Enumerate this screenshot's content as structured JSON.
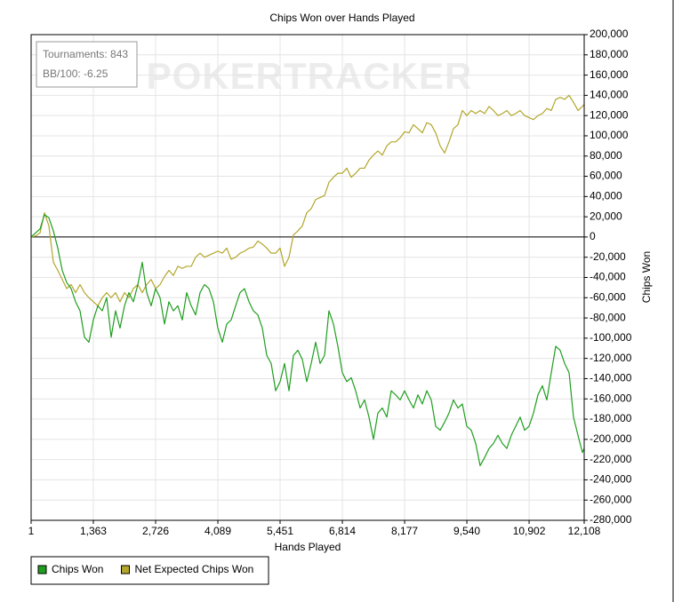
{
  "chart_data": {
    "type": "line",
    "title": "Chips Won over Hands Played",
    "xlabel": "Hands Played",
    "ylabel": "Chips Won",
    "watermark": "POKERTRACKER",
    "annotations": [
      "Tournaments: 843",
      "BB/100: -6.25"
    ],
    "grid": true,
    "zero_line": true,
    "y_axis_side": "right",
    "legend_position": "below-left",
    "x": [
      1,
      98,
      196,
      293,
      390,
      488,
      585,
      682,
      780,
      877,
      974,
      1072,
      1169,
      1266,
      1363,
      1461,
      1558,
      1655,
      1753,
      1850,
      1947,
      2045,
      2142,
      2239,
      2337,
      2434,
      2531,
      2629,
      2726,
      2823,
      2921,
      3018,
      3115,
      3213,
      3310,
      3407,
      3505,
      3602,
      3699,
      3796,
      3894,
      3991,
      4088,
      4186,
      4283,
      4380,
      4478,
      4575,
      4672,
      4770,
      4867,
      4964,
      5062,
      5159,
      5256,
      5354,
      5451,
      5548,
      5646,
      5743,
      5840,
      5938,
      6035,
      6132,
      6230,
      6327,
      6424,
      6521,
      6619,
      6716,
      6813,
      6911,
      7008,
      7105,
      7203,
      7300,
      7397,
      7495,
      7592,
      7689,
      7787,
      7884,
      7981,
      8079,
      8176,
      8273,
      8371,
      8468,
      8565,
      8663,
      8760,
      8857,
      8955,
      9052,
      9149,
      9246,
      9344,
      9441,
      9538,
      9636,
      9733,
      9830,
      9928,
      10025,
      10122,
      10220,
      10317,
      10414,
      10512,
      10609,
      10706,
      10804,
      10901,
      10998,
      11096,
      11193,
      11290,
      11388,
      11485,
      11582,
      11680,
      11777,
      11874,
      11972,
      12069,
      12108
    ],
    "series": [
      {
        "name": "Chips Won",
        "color": "#1f9e1f",
        "values": [
          0,
          4000,
          8000,
          22000,
          19000,
          6000,
          -11000,
          -33000,
          -45000,
          -51000,
          -64000,
          -73000,
          -99000,
          -104000,
          -82000,
          -68000,
          -73000,
          -60000,
          -99000,
          -73000,
          -90000,
          -68000,
          -55000,
          -64000,
          -47000,
          -25000,
          -55000,
          -68000,
          -51000,
          -60000,
          -86000,
          -64000,
          -73000,
          -68000,
          -82000,
          -55000,
          -68000,
          -77000,
          -55000,
          -47000,
          -51000,
          -64000,
          -90000,
          -104000,
          -86000,
          -82000,
          -68000,
          -55000,
          -51000,
          -64000,
          -73000,
          -77000,
          -90000,
          -117000,
          -125000,
          -152000,
          -143000,
          -125000,
          -152000,
          -117000,
          -112000,
          -121000,
          -143000,
          -125000,
          -104000,
          -125000,
          -117000,
          -73000,
          -86000,
          -108000,
          -134000,
          -143000,
          -139000,
          -152000,
          -169000,
          -161000,
          -178000,
          -200000,
          -174000,
          -169000,
          -178000,
          -152000,
          -156000,
          -161000,
          -152000,
          -161000,
          -169000,
          -156000,
          -165000,
          -152000,
          -161000,
          -187000,
          -191000,
          -183000,
          -174000,
          -161000,
          -169000,
          -165000,
          -187000,
          -191000,
          -204000,
          -226000,
          -218000,
          -209000,
          -204000,
          -196000,
          -204000,
          -209000,
          -196000,
          -187000,
          -178000,
          -191000,
          -187000,
          -174000,
          -156000,
          -147000,
          -161000,
          -134000,
          -108000,
          -112000,
          -125000,
          -134000,
          -178000,
          -196000,
          -213000,
          -209000
        ]
      },
      {
        "name": "Net Expected Chips Won",
        "color": "#b3a62b",
        "values": [
          0,
          1000,
          4000,
          24000,
          11000,
          -25000,
          -33000,
          -42000,
          -51000,
          -47000,
          -55000,
          -47000,
          -55000,
          -60000,
          -64000,
          -68000,
          -60000,
          -55000,
          -60000,
          -55000,
          -64000,
          -55000,
          -60000,
          -51000,
          -47000,
          -55000,
          -47000,
          -42000,
          -51000,
          -47000,
          -39000,
          -33000,
          -38000,
          -29000,
          -31000,
          -29000,
          -29000,
          -20000,
          -16000,
          -20000,
          -18000,
          -16000,
          -14000,
          -16000,
          -11000,
          -22000,
          -20000,
          -16000,
          -14000,
          -11000,
          -10000,
          -4000,
          -7000,
          -11000,
          -16000,
          -16000,
          -11000,
          -29000,
          -20000,
          2000,
          6000,
          11000,
          24000,
          28000,
          37000,
          39000,
          41000,
          54000,
          59000,
          63000,
          63000,
          68000,
          59000,
          63000,
          68000,
          68000,
          76000,
          81000,
          85000,
          81000,
          90000,
          94000,
          94000,
          98000,
          104000,
          103000,
          111000,
          107000,
          103000,
          113000,
          111000,
          103000,
          90000,
          83000,
          94000,
          107000,
          111000,
          125000,
          120000,
          125000,
          122000,
          125000,
          122000,
          129000,
          125000,
          120000,
          122000,
          125000,
          120000,
          122000,
          125000,
          120000,
          118000,
          116000,
          120000,
          122000,
          127000,
          125000,
          136000,
          138000,
          136000,
          140000,
          133000,
          125000,
          129000,
          131000
        ]
      }
    ],
    "xlim": [
      1,
      12108
    ],
    "xticks": [
      1,
      {
        "value": 1363,
        "label": "1,363"
      },
      {
        "value": 2726,
        "label": "2,726"
      },
      {
        "value": 4089,
        "label": "4,089"
      },
      {
        "value": 5451,
        "label": "5,451"
      },
      {
        "value": 6814,
        "label": "6,814"
      },
      {
        "value": 8177,
        "label": "8,177"
      },
      {
        "value": 9540,
        "label": "9,540"
      },
      {
        "value": 10902,
        "label": "10,902"
      },
      {
        "value": 12108,
        "label": "12,108"
      }
    ],
    "ylim": [
      -280000,
      200000
    ],
    "yticks": [
      {
        "value": 200000,
        "label": "200,000"
      },
      {
        "value": 180000,
        "label": "180,000"
      },
      {
        "value": 160000,
        "label": "160,000"
      },
      {
        "value": 140000,
        "label": "140,000"
      },
      {
        "value": 120000,
        "label": "120,000"
      },
      {
        "value": 100000,
        "label": "100,000"
      },
      {
        "value": 80000,
        "label": "80,000"
      },
      {
        "value": 60000,
        "label": "60,000"
      },
      {
        "value": 40000,
        "label": "40,000"
      },
      {
        "value": 20000,
        "label": "20,000"
      },
      0,
      {
        "value": -20000,
        "label": "-20,000"
      },
      {
        "value": -40000,
        "label": "-40,000"
      },
      {
        "value": -60000,
        "label": "-60,000"
      },
      {
        "value": -80000,
        "label": "-80,000"
      },
      {
        "value": -100000,
        "label": "-100,000"
      },
      {
        "value": -120000,
        "label": "-120,000"
      },
      {
        "value": -140000,
        "label": "-140,000"
      },
      {
        "value": -160000,
        "label": "-160,000"
      },
      {
        "value": -180000,
        "label": "-180,000"
      },
      {
        "value": -200000,
        "label": "-200,000"
      },
      {
        "value": -220000,
        "label": "-220,000"
      },
      {
        "value": -240000,
        "label": "-240,000"
      },
      {
        "value": -260000,
        "label": "-260,000"
      },
      {
        "value": -280000,
        "label": "-280,000"
      }
    ]
  }
}
